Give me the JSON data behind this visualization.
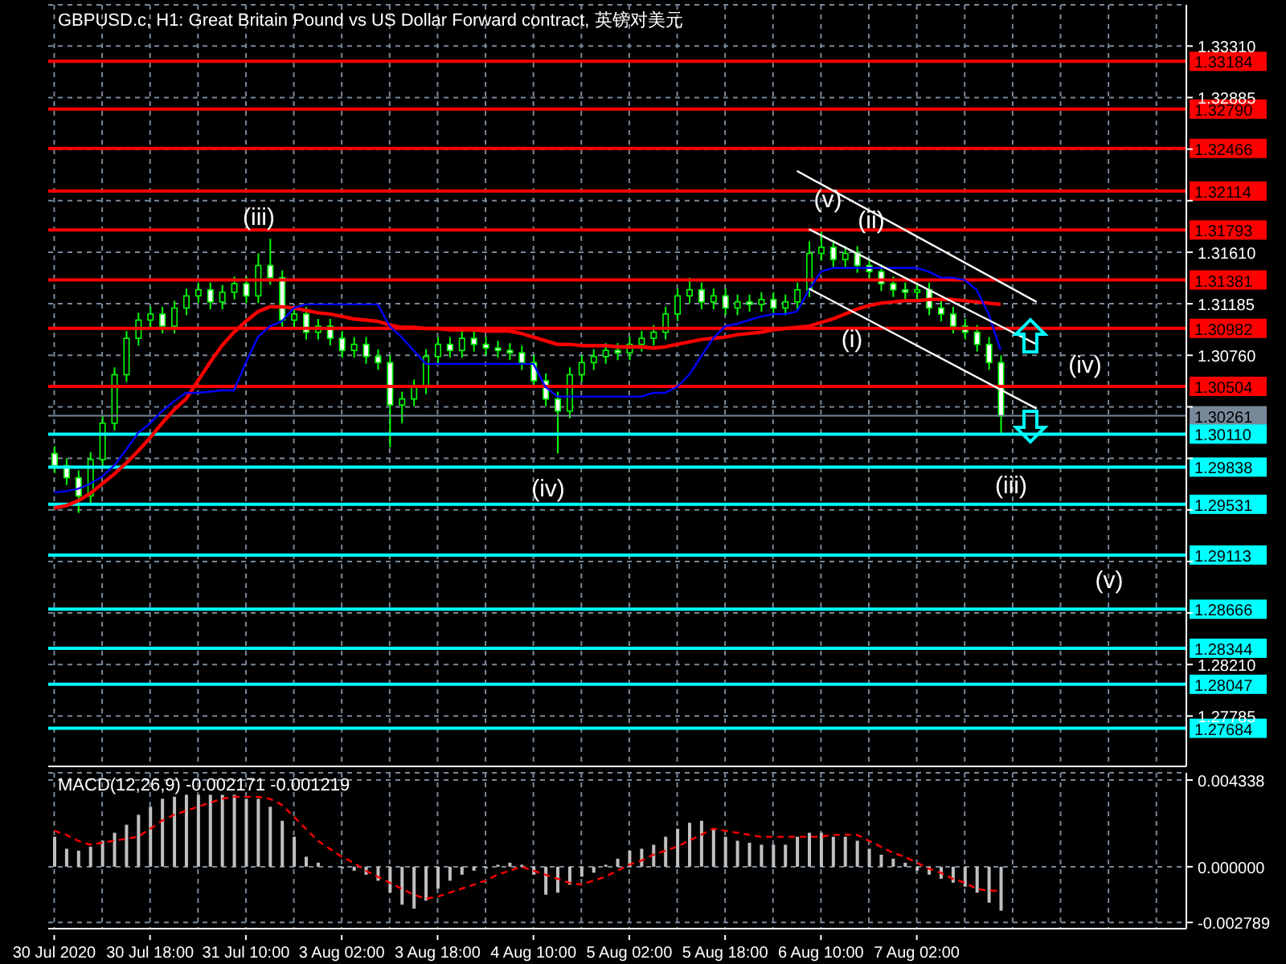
{
  "chart_data": [
    {
      "type": "candlestick",
      "title": "GBPUSD.c, H1:  Great Britain Pound vs US Dollar Forward contract, 英镑对美元",
      "color": "#00ff00",
      "categories": [
        null,
        null,
        null,
        null,
        null,
        null,
        null,
        null,
        null,
        null,
        null,
        null,
        null,
        null,
        null,
        null,
        null,
        null,
        null,
        null,
        null,
        null,
        null,
        null,
        null,
        null,
        null,
        null,
        null,
        null,
        null,
        null,
        null,
        null,
        null,
        null,
        null,
        null,
        null,
        null,
        null,
        null,
        null,
        null,
        null,
        null,
        null,
        null,
        null,
        null,
        null,
        null,
        null,
        null,
        null,
        null,
        null,
        null,
        null,
        null,
        null,
        null,
        null,
        null,
        null,
        null,
        null,
        null,
        null,
        null,
        null,
        null,
        null,
        null,
        null,
        null,
        null,
        null,
        null,
        null,
        null,
        null,
        null,
        null,
        null,
        null,
        null,
        null,
        null,
        null,
        null,
        null,
        null,
        null,
        null
      ],
      "ohlc": [
        [
          1.2995,
          1.3001,
          1.2979,
          1.2985
        ],
        [
          1.2985,
          1.2991,
          1.2969,
          1.2975
        ],
        [
          1.2975,
          1.2981,
          1.2946,
          1.296
        ],
        [
          1.296,
          1.2996,
          1.2954,
          1.299
        ],
        [
          1.299,
          1.3026,
          1.2984,
          1.302
        ],
        [
          1.302,
          1.3066,
          1.3014,
          1.306
        ],
        [
          1.306,
          1.3096,
          1.3054,
          1.309
        ],
        [
          1.309,
          1.3111,
          1.3084,
          1.3105
        ],
        [
          1.3105,
          1.3116,
          1.3099,
          1.311
        ],
        [
          1.311,
          1.3116,
          1.3094,
          1.31
        ],
        [
          1.31,
          1.3121,
          1.3094,
          1.3115
        ],
        [
          1.3115,
          1.3131,
          1.3109,
          1.3125
        ],
        [
          1.3125,
          1.3136,
          1.3119,
          1.313
        ],
        [
          1.313,
          1.3136,
          1.3114,
          1.312
        ],
        [
          1.312,
          1.3134,
          1.3114,
          1.3128
        ],
        [
          1.3128,
          1.3141,
          1.3122,
          1.3135
        ],
        [
          1.3135,
          1.3141,
          1.3119,
          1.3125
        ],
        [
          1.3125,
          1.316,
          1.3119,
          1.315
        ],
        [
          1.315,
          1.3172,
          1.3134,
          1.314
        ],
        [
          1.314,
          1.3146,
          1.3099,
          1.3105
        ],
        [
          1.3105,
          1.3116,
          1.3099,
          1.311
        ],
        [
          1.311,
          1.3116,
          1.3089,
          1.3095
        ],
        [
          1.3095,
          1.3106,
          1.3089,
          1.31
        ],
        [
          1.31,
          1.3106,
          1.3084,
          1.309
        ],
        [
          1.309,
          1.3096,
          1.3074,
          1.308
        ],
        [
          1.308,
          1.3091,
          1.3074,
          1.3085
        ],
        [
          1.3085,
          1.3091,
          1.3069,
          1.3075
        ],
        [
          1.3075,
          1.3081,
          1.3064,
          1.307
        ],
        [
          1.307,
          1.3076,
          1.3,
          1.3035
        ],
        [
          1.3035,
          1.3046,
          1.302,
          1.304
        ],
        [
          1.304,
          1.3056,
          1.3034,
          1.305
        ],
        [
          1.305,
          1.3081,
          1.3044,
          1.3075
        ],
        [
          1.3075,
          1.3091,
          1.3069,
          1.3085
        ],
        [
          1.3085,
          1.3091,
          1.3074,
          1.308
        ],
        [
          1.308,
          1.3096,
          1.3074,
          1.309
        ],
        [
          1.309,
          1.3096,
          1.3079,
          1.3085
        ],
        [
          1.3085,
          1.3091,
          1.3076,
          1.3082
        ],
        [
          1.3082,
          1.3088,
          1.3074,
          1.308
        ],
        [
          1.308,
          1.3086,
          1.3072,
          1.3078
        ],
        [
          1.3078,
          1.3084,
          1.3064,
          1.307
        ],
        [
          1.307,
          1.3076,
          1.3049,
          1.3055
        ],
        [
          1.3055,
          1.3061,
          1.3034,
          1.304
        ],
        [
          1.304,
          1.3046,
          1.2995,
          1.303
        ],
        [
          1.303,
          1.3066,
          1.3024,
          1.306
        ],
        [
          1.306,
          1.3076,
          1.3054,
          1.307
        ],
        [
          1.307,
          1.3081,
          1.3064,
          1.3075
        ],
        [
          1.3075,
          1.3086,
          1.3069,
          1.308
        ],
        [
          1.308,
          1.3086,
          1.3072,
          1.3078
        ],
        [
          1.3078,
          1.3091,
          1.3072,
          1.3085
        ],
        [
          1.3085,
          1.3096,
          1.3079,
          1.309
        ],
        [
          1.309,
          1.3101,
          1.3084,
          1.3095
        ],
        [
          1.3095,
          1.3116,
          1.3089,
          1.311
        ],
        [
          1.311,
          1.3131,
          1.3104,
          1.3125
        ],
        [
          1.3125,
          1.314,
          1.3119,
          1.313
        ],
        [
          1.313,
          1.3136,
          1.3114,
          1.312
        ],
        [
          1.312,
          1.3131,
          1.3114,
          1.3125
        ],
        [
          1.3125,
          1.3131,
          1.3109,
          1.3115
        ],
        [
          1.3115,
          1.3126,
          1.3109,
          1.312
        ],
        [
          1.312,
          1.3126,
          1.3112,
          1.3118
        ],
        [
          1.3118,
          1.3128,
          1.3112,
          1.3122
        ],
        [
          1.3122,
          1.3128,
          1.3109,
          1.3115
        ],
        [
          1.3115,
          1.3126,
          1.3109,
          1.312
        ],
        [
          1.312,
          1.3136,
          1.3114,
          1.313
        ],
        [
          1.313,
          1.317,
          1.3124,
          1.316
        ],
        [
          1.316,
          1.318,
          1.3154,
          1.3165
        ],
        [
          1.3165,
          1.3171,
          1.3149,
          1.3155
        ],
        [
          1.3155,
          1.3166,
          1.3149,
          1.316
        ],
        [
          1.316,
          1.3166,
          1.3144,
          1.315
        ],
        [
          1.315,
          1.3156,
          1.3139,
          1.3145
        ],
        [
          1.3145,
          1.3151,
          1.3129,
          1.3135
        ],
        [
          1.3135,
          1.3141,
          1.3124,
          1.313
        ],
        [
          1.313,
          1.3136,
          1.3122,
          1.3128
        ],
        [
          1.3128,
          1.3136,
          1.3122,
          1.313
        ],
        [
          1.313,
          1.3136,
          1.3109,
          1.3115
        ],
        [
          1.3115,
          1.3121,
          1.3104,
          1.311
        ],
        [
          1.311,
          1.3116,
          1.3094,
          1.31
        ],
        [
          1.31,
          1.3106,
          1.3089,
          1.3095
        ],
        [
          1.3095,
          1.3101,
          1.3079,
          1.3085
        ],
        [
          1.3085,
          1.3091,
          1.3064,
          1.307
        ],
        [
          1.307,
          1.3076,
          1.3011,
          1.3026
        ],
        null,
        null,
        null,
        null,
        null,
        null,
        null,
        null,
        null,
        null,
        null,
        null,
        null,
        null,
        null
      ],
      "series": [
        {
          "type": "line",
          "color": "#ff0000",
          "values": [
            1.295,
            1.2952,
            1.2956,
            1.2962,
            1.297,
            1.2978,
            1.2987,
            1.2997,
            1.3008,
            1.302,
            1.3031,
            1.304,
            1.3055,
            1.307,
            1.3084,
            1.3095,
            1.3104,
            1.3112,
            1.3116,
            1.3116,
            1.3115,
            1.3113,
            1.3111,
            1.311,
            1.3108,
            1.3106,
            1.3105,
            1.3104,
            1.3101,
            1.3099,
            1.3099,
            1.3098,
            1.3098,
            1.3097,
            1.3097,
            1.3097,
            1.3096,
            1.3096,
            1.3096,
            1.3094,
            1.3091,
            1.3088,
            1.3085,
            1.3085,
            1.3084,
            1.3084,
            1.3084,
            1.3083,
            1.3083,
            1.3083,
            1.3082,
            1.3083,
            1.3085,
            1.3087,
            1.3089,
            1.309,
            1.3091,
            1.3093,
            1.3094,
            1.3095,
            1.3097,
            1.3098,
            1.3099,
            1.31,
            1.3103,
            1.3106,
            1.311,
            1.3114,
            1.3117,
            1.3119,
            1.312,
            1.3121,
            1.3121,
            1.3122,
            1.3122,
            1.3122,
            1.3121,
            1.312,
            1.3119,
            1.3118,
            null,
            null,
            null,
            null,
            null,
            null,
            null,
            null,
            null,
            null,
            null,
            null,
            null,
            null,
            null
          ]
        },
        {
          "type": "line",
          "color": "#0000ff",
          "values": [
            1.2963,
            1.2964,
            1.2966,
            1.297,
            1.2976,
            1.2985,
            1.2998,
            1.3012,
            1.302,
            1.303,
            1.3038,
            1.3045,
            1.3045,
            1.3046,
            1.3047,
            1.3047,
            1.307,
            1.3091,
            1.31,
            1.3104,
            1.3115,
            1.3118,
            1.3118,
            1.3118,
            1.3118,
            1.3118,
            1.3118,
            1.3118,
            1.31,
            1.3091,
            1.308,
            1.3069,
            1.3069,
            1.3069,
            1.3069,
            1.3069,
            1.3069,
            1.3069,
            1.3069,
            1.3069,
            1.3069,
            1.305,
            1.3042,
            1.3042,
            1.3042,
            1.3042,
            1.3042,
            1.3042,
            1.3042,
            1.3042,
            1.3045,
            1.3045,
            1.305,
            1.306,
            1.3075,
            1.309,
            1.31,
            1.3102,
            1.3105,
            1.3108,
            1.311,
            1.311,
            1.3112,
            1.313,
            1.3145,
            1.3148,
            1.3148,
            1.3148,
            1.3148,
            1.3148,
            1.3148,
            1.3148,
            1.3148,
            1.3145,
            1.314,
            1.314,
            1.3138,
            1.313,
            1.311,
            1.308,
            null,
            null,
            null,
            null,
            null,
            null,
            null,
            null,
            null,
            null,
            null,
            null,
            null,
            null,
            null
          ]
        },
        {
          "type": "line",
          "color": "#ffffff",
          "values": [
            null,
            null,
            null,
            null,
            null,
            null,
            null,
            null,
            null,
            null,
            null,
            null,
            null,
            null,
            null,
            null,
            null,
            null,
            null,
            null,
            null,
            null,
            null,
            null,
            null,
            null,
            null,
            null,
            null,
            null,
            null,
            null,
            null,
            null,
            null,
            null,
            null,
            null,
            null,
            null,
            null,
            null,
            null,
            null,
            null,
            null,
            null,
            null,
            null,
            null,
            null,
            null,
            null,
            null,
            null,
            null,
            null,
            null,
            null,
            null,
            null,
            null,
            1.3228,
            null,
            null,
            null,
            null,
            null,
            null,
            null,
            null,
            null,
            null,
            null,
            null,
            null,
            null,
            null,
            null,
            null,
            null,
            null,
            1.312,
            null,
            null,
            null,
            null,
            null,
            null,
            null,
            null,
            null,
            null,
            null,
            null
          ]
        },
        {
          "type": "line",
          "color": "#ffffff",
          "values": [
            null,
            null,
            null,
            null,
            null,
            null,
            null,
            null,
            null,
            null,
            null,
            null,
            null,
            null,
            null,
            null,
            null,
            null,
            null,
            null,
            null,
            null,
            null,
            null,
            null,
            null,
            null,
            null,
            null,
            null,
            null,
            null,
            null,
            null,
            null,
            null,
            null,
            null,
            null,
            null,
            null,
            null,
            null,
            null,
            null,
            null,
            null,
            null,
            null,
            null,
            null,
            null,
            null,
            null,
            null,
            null,
            null,
            null,
            null,
            null,
            null,
            null,
            null,
            1.318,
            null,
            null,
            null,
            null,
            null,
            null,
            null,
            null,
            null,
            null,
            null,
            null,
            null,
            null,
            null,
            null,
            null,
            null,
            1.3085,
            null,
            null,
            null,
            null,
            null,
            null,
            null,
            null,
            null,
            null,
            null,
            null
          ]
        },
        {
          "type": "line",
          "color": "#ffffff",
          "values": [
            null,
            null,
            null,
            null,
            null,
            null,
            null,
            null,
            null,
            null,
            null,
            null,
            null,
            null,
            null,
            null,
            null,
            null,
            null,
            null,
            null,
            null,
            null,
            null,
            null,
            null,
            null,
            null,
            null,
            null,
            null,
            null,
            null,
            null,
            null,
            null,
            null,
            null,
            null,
            null,
            null,
            null,
            null,
            null,
            null,
            null,
            null,
            null,
            null,
            null,
            null,
            null,
            null,
            null,
            null,
            null,
            null,
            null,
            null,
            null,
            null,
            null,
            null,
            1.3131,
            null,
            null,
            null,
            null,
            null,
            null,
            null,
            null,
            null,
            null,
            null,
            null,
            null,
            null,
            null,
            null,
            null,
            null,
            1.3032,
            null,
            null,
            null,
            null,
            null,
            null,
            null,
            null,
            null,
            null,
            null,
            null
          ]
        }
      ],
      "ylim": [
        1.2737,
        1.3365
      ],
      "yticks": [
        {
          "value": 1.3331,
          "label": "1.33310"
        },
        {
          "value": 1.32885,
          "label": "1.32885"
        },
        {
          "value": 1.3246,
          "label": null
        },
        {
          "value": 1.32035,
          "label": null
        },
        {
          "value": 1.3161,
          "label": "1.31610"
        },
        {
          "value": 1.31185,
          "label": "1.31185"
        },
        {
          "value": 1.3076,
          "label": "1.30760"
        },
        {
          "value": 1.30335,
          "label": null
        },
        {
          "value": 1.2991,
          "label": null
        },
        {
          "value": 1.29485,
          "label": null
        },
        {
          "value": 1.2906,
          "label": null
        },
        {
          "value": 1.28635,
          "label": null
        },
        {
          "value": 1.2821,
          "label": "1.28210"
        },
        {
          "value": 1.27785,
          "label": "1.27785"
        }
      ],
      "tick_labels": "y",
      "grid": true,
      "ref_lines": [
        {
          "axis": "y",
          "value": 1.33184,
          "label": "1.33184",
          "color": "#ff0000"
        },
        {
          "axis": "y",
          "value": 1.3279,
          "label": "1.32790",
          "color": "#ff0000"
        },
        {
          "axis": "y",
          "value": 1.32466,
          "label": "1.32466",
          "color": "#ff0000"
        },
        {
          "axis": "y",
          "value": 1.32114,
          "label": "1.32114",
          "color": "#ff0000"
        },
        {
          "axis": "y",
          "value": 1.31793,
          "label": "1.31793",
          "color": "#ff0000"
        },
        {
          "axis": "y",
          "value": 1.31381,
          "label": "1.31381",
          "color": "#ff0000"
        },
        {
          "axis": "y",
          "value": 1.30982,
          "label": "1.30982",
          "color": "#ff0000"
        },
        {
          "axis": "y",
          "value": 1.30504,
          "label": "1.30504",
          "color": "#ff0000"
        },
        {
          "axis": "y",
          "value": 1.30261,
          "label": "1.30261",
          "color": "#778899"
        },
        {
          "axis": "y",
          "value": 1.3011,
          "label": "1.30110",
          "color": "#00ffff"
        },
        {
          "axis": "y",
          "value": 1.29838,
          "label": "1.29838",
          "color": "#00ffff"
        },
        {
          "axis": "y",
          "value": 1.29531,
          "label": "1.29531",
          "color": "#00ffff"
        },
        {
          "axis": "y",
          "value": 1.29113,
          "label": "1.29113",
          "color": "#00ffff"
        },
        {
          "axis": "y",
          "value": 1.28666,
          "label": "1.28666",
          "color": "#00ffff"
        },
        {
          "axis": "y",
          "value": 1.28344,
          "label": "1.28344",
          "color": "#00ffff"
        },
        {
          "axis": "y",
          "value": 1.28047,
          "label": "1.28047",
          "color": "#00ffff"
        },
        {
          "axis": "y",
          "value": 1.27684,
          "label": "1.27684",
          "color": "#00ffff"
        }
      ],
      "annotations": [
        "(iii)",
        "(iv)",
        "(v)",
        "(ii)",
        "(i)",
        "(iii)",
        "(iv)",
        "(v)"
      ]
    },
    {
      "type": "bar",
      "title": "MACD(12,26,9) -0.002171 -0.001219",
      "categories": [
        "30 Jul 2020",
        null,
        null,
        null,
        null,
        null,
        null,
        null,
        "30 Jul 18:00",
        null,
        null,
        null,
        null,
        null,
        null,
        null,
        "31 Jul 10:00",
        null,
        null,
        null,
        null,
        null,
        null,
        null,
        "3 Aug 02:00",
        null,
        null,
        null,
        null,
        null,
        null,
        null,
        "3 Aug 18:00",
        null,
        null,
        null,
        null,
        null,
        null,
        null,
        "4 Aug 10:00",
        null,
        null,
        null,
        null,
        null,
        null,
        null,
        "5 Aug 02:00",
        null,
        null,
        null,
        null,
        null,
        null,
        null,
        "5 Aug 18:00",
        null,
        null,
        null,
        null,
        null,
        null,
        null,
        "6 Aug 10:00",
        null,
        null,
        null,
        null,
        null,
        null,
        null,
        "7 Aug 02:00",
        null,
        null,
        null,
        null,
        null,
        null,
        null,
        null,
        null,
        null,
        null,
        null,
        null,
        null,
        null,
        null,
        null,
        null,
        null,
        null,
        null,
        null
      ],
      "series": [
        {
          "type": "bar",
          "color": "#c0c0c0",
          "values": [
            0.0015,
            0.0009,
            0.0008,
            0.001,
            0.0013,
            0.0017,
            0.0021,
            0.0026,
            0.003,
            0.0034,
            0.0035,
            0.0036,
            0.0036,
            0.0036,
            0.0036,
            0.0036,
            0.0034,
            0.0034,
            0.003,
            0.0023,
            0.0015,
            0.0005,
            0.0002,
            0,
            -0.0001,
            -0.0002,
            -0.0004,
            -0.0007,
            -0.0013,
            -0.0019,
            -0.0021,
            -0.0017,
            -0.0011,
            -0.0007,
            -0.0004,
            -0.0002,
            -0.0001,
            0.0001,
            0.0002,
            0.0001,
            -0.0004,
            -0.0014,
            -0.0013,
            -0.0009,
            -0.0005,
            -0.0003,
            0.0001,
            0.0004,
            0.0008,
            0.0009,
            0.0011,
            0.0015,
            0.0019,
            0.0022,
            0.0023,
            0.0019,
            0.0015,
            0.0013,
            0.0012,
            0.0011,
            0.0011,
            0.0011,
            0.0015,
            0.0017,
            0.0017,
            0.0015,
            0.0015,
            0.0013,
            0.0009,
            0.0006,
            0.0004,
            0.0002,
            -0.0002,
            -0.0004,
            -0.0006,
            -0.0008,
            -0.001,
            -0.0013,
            -0.0018,
            -0.0022,
            null,
            null,
            null,
            null,
            null,
            null,
            null,
            null,
            null,
            null,
            null,
            null,
            null,
            null,
            null
          ]
        },
        {
          "type": "line",
          "color": "#ff0000",
          "line_style": "dashed",
          "values": [
            0.0018,
            0.0016,
            0.0013,
            0.0011,
            0.0012,
            0.0013,
            0.0014,
            0.0015,
            0.0019,
            0.0023,
            0.0026,
            0.0028,
            0.003,
            0.0032,
            0.0034,
            0.0035,
            0.0035,
            0.0035,
            0.0034,
            0.0031,
            0.0025,
            0.0019,
            0.0013,
            0.0009,
            0.0005,
            0.0002,
            -0.0002,
            -0.0005,
            -0.0008,
            -0.0011,
            -0.0014,
            -0.0016,
            -0.0015,
            -0.0013,
            -0.0011,
            -0.0009,
            -0.0007,
            -0.0004,
            -0.0002,
            0,
            -0.0002,
            -0.0004,
            -0.0006,
            -0.0008,
            -0.0009,
            -0.0007,
            -0.0005,
            -0.0002,
            0.0001,
            0.0003,
            0.0006,
            0.0008,
            0.001,
            0.0013,
            0.0016,
            0.0019,
            0.0018,
            0.0017,
            0.0016,
            0.0015,
            0.0015,
            0.0015,
            0.0015,
            0.0015,
            0.0015,
            0.0016,
            0.0016,
            0.0016,
            0.0013,
            0.001,
            0.0007,
            0.0005,
            0.0002,
            -0.0001,
            -0.0003,
            -0.0006,
            -0.0008,
            -0.0011,
            -0.0012,
            -0.0012,
            null,
            null,
            null,
            null,
            null,
            null,
            null,
            null,
            null,
            null,
            null,
            null,
            null,
            null,
            null
          ]
        }
      ],
      "ylim": [
        -0.0031,
        0.0047
      ],
      "yticks": [
        {
          "value": 0.004338,
          "label": "0.004338"
        },
        {
          "value": 0,
          "label": "0.000000"
        },
        {
          "value": -0.002789,
          "label": "-0.002789"
        }
      ],
      "grid": true
    }
  ]
}
